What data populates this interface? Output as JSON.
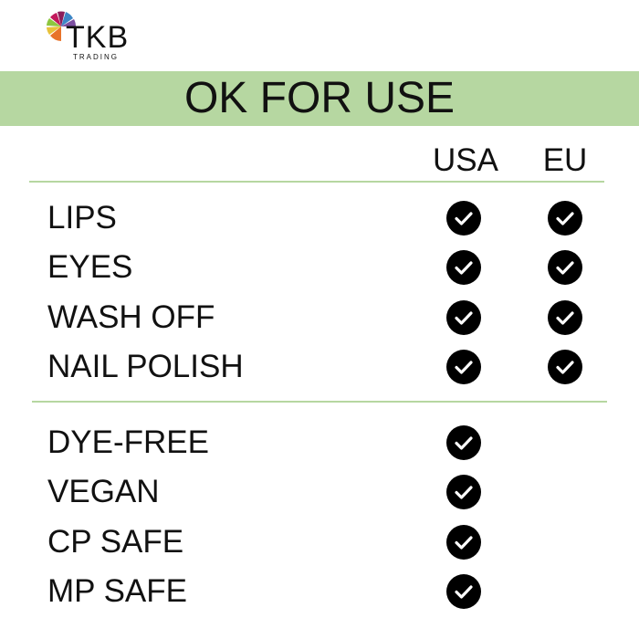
{
  "logo": {
    "name": "TKB",
    "subtitle": "TRADING"
  },
  "banner": {
    "title": "OK FOR USE"
  },
  "columns": [
    "USA",
    "EU"
  ],
  "colors": {
    "banner": "#b6d7a1",
    "check": "#000000"
  },
  "groups": [
    {
      "rows": [
        {
          "label": "LIPS",
          "usa": true,
          "eu": true
        },
        {
          "label": "EYES",
          "usa": true,
          "eu": true
        },
        {
          "label": "WASH OFF",
          "usa": true,
          "eu": true
        },
        {
          "label": "NAIL POLISH",
          "usa": true,
          "eu": true
        }
      ]
    },
    {
      "rows": [
        {
          "label": "DYE-FREE",
          "usa": true,
          "eu": false
        },
        {
          "label": "VEGAN",
          "usa": true,
          "eu": false
        },
        {
          "label": "CP SAFE",
          "usa": true,
          "eu": false
        },
        {
          "label": "MP SAFE",
          "usa": true,
          "eu": false
        }
      ]
    }
  ]
}
